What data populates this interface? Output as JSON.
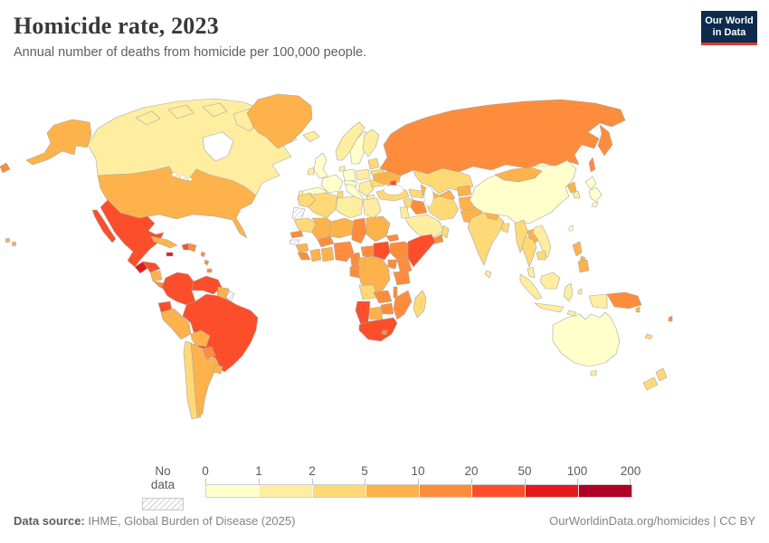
{
  "header": {
    "title": "Homicide rate, 2023",
    "subtitle": "Annual number of deaths from homicide per 100,000 people.",
    "logo": {
      "line1": "Our World",
      "line2": "in Data",
      "bg": "#0d2b4d",
      "accent": "#dc3a2e"
    }
  },
  "legend": {
    "no_data_label": "No data",
    "ticks": [
      "0",
      "1",
      "2",
      "5",
      "10",
      "20",
      "50",
      "100",
      "200"
    ],
    "bin_colors": [
      "#ffffcc",
      "#ffeda0",
      "#fed976",
      "#feb24c",
      "#fd8d3c",
      "#fc4e2a",
      "#e31a1c",
      "#b10026"
    ]
  },
  "footer": {
    "source_label": "Data source:",
    "source_text": " IHME, Global Burden of Disease (2025)",
    "license_text": "OurWorldinData.org/homicides | CC BY"
  },
  "map": {
    "stroke": "#a8a8a8",
    "regions": {
      "alaska": 3,
      "canada": 1,
      "greenland": 3,
      "usa": 3,
      "hawaii": 3,
      "mexico": 5,
      "guatemala": 6,
      "honduras": 5,
      "nicaragua": 3,
      "costa-rica-panama": 4,
      "cuba": 3,
      "jamaica": 6,
      "haiti": 5,
      "dominican-republic": 4,
      "lesser-antilles": 4,
      "colombia": 5,
      "venezuela": 5,
      "guyana-suriname": 3,
      "french-guiana": "no-data",
      "ecuador": 5,
      "peru": 3,
      "brazil": 5,
      "bolivia": 3,
      "paraguay": 4,
      "chile": 2,
      "argentina": 3,
      "uruguay": 3,
      "iceland": 1,
      "uk": 0,
      "ireland": 1,
      "norway": 1,
      "sweden": 0,
      "finland": 1,
      "denmark": 1,
      "baltics": 2,
      "belarus": 2,
      "poland": 1,
      "germany": 0,
      "france": 0,
      "spain": 0,
      "portugal": 1,
      "italy": 0,
      "central-europe": 0,
      "balkans": 1,
      "greece": 1,
      "romania": 2,
      "ukraine": 3,
      "black-sea-patch": 5,
      "russia": 4,
      "kazakhstan": 2,
      "uzbek-turkmen": 3,
      "kyrgyz-tajik": 3,
      "turkey": 2,
      "caucasus": 2,
      "syria": 2,
      "israel-jordan": 1,
      "iraq": 4,
      "saudi-arabia": 1,
      "yemen": 4,
      "oman": 2,
      "iran": 2,
      "afghanistan": 3,
      "pakistan": 3,
      "india": 2,
      "sri-lanka": 1,
      "nepal": 3,
      "bangladesh": 2,
      "myanmar": 2,
      "laos": 3,
      "vietnam": 1,
      "thailand": 2,
      "cambodia": 2,
      "malaysia": 1,
      "indonesia": 1,
      "philippines": 3,
      "taiwan": 0,
      "china": 0,
      "mongolia": 3,
      "north-korea": 3,
      "south-korea": 1,
      "japan": 0,
      "morocco": 2,
      "western-sahara": "no-data",
      "algeria": 2,
      "tunisia": 2,
      "libya": 1,
      "egypt": 1,
      "mauritania": 2,
      "mali": 3,
      "niger": 3,
      "chad": 4,
      "sudan": 3,
      "eritrea": 4,
      "senegal": 4,
      "gambia-bissau": "no-data",
      "guinea": 3,
      "sierra-leone-liberia": 4,
      "ivory-coast": 3,
      "ghana-togo-benin": 3,
      "burkina-faso": 4,
      "nigeria": 4,
      "cameroon": 4,
      "central-african-republic": 4,
      "ethiopia": 4,
      "south-sudan": 5,
      "somalia": 5,
      "kenya": 4,
      "uganda": 4,
      "drc": 3,
      "gabon-congo": 4,
      "tanzania": 4,
      "angola": 2,
      "zambia": 4,
      "malawi": 4,
      "mozambique": 4,
      "zimbabwe": 4,
      "botswana": 3,
      "namibia": 5,
      "south-africa": 5,
      "lesotho": 4,
      "madagascar": 2,
      "australia": 0,
      "tasmania": 1,
      "png": 4,
      "west-papua": 1,
      "new-zealand": 2,
      "solomon": 3,
      "fiji": 4,
      "new-caledonia": 2,
      "chukotka-fragment": 4
    }
  }
}
